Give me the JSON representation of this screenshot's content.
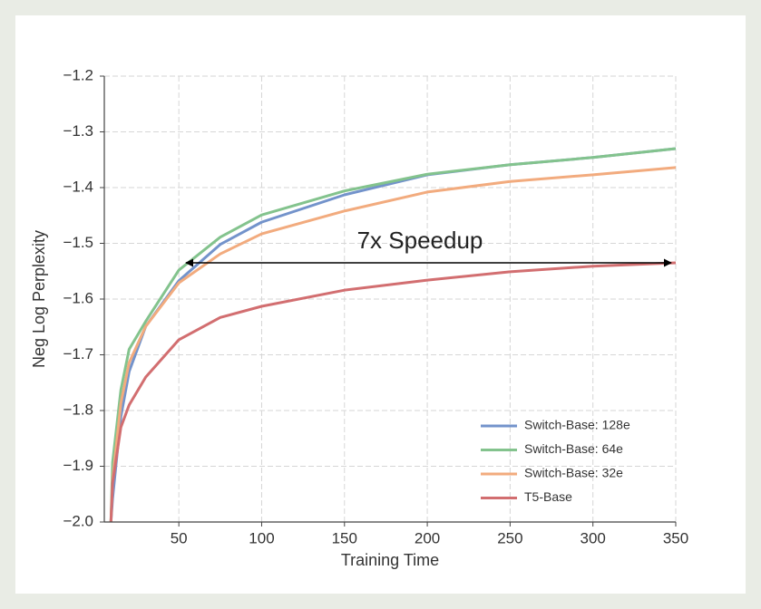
{
  "chart_data": {
    "type": "line",
    "xlabel": "Training Time",
    "ylabel": "Neg Log Perplexity",
    "annotation": "7x Speedup",
    "x": [
      9,
      10,
      15,
      20,
      30,
      50,
      75,
      100,
      150,
      200,
      250,
      300,
      350
    ],
    "series": [
      {
        "name": "Switch-Base: 128e",
        "color": "#7393cb",
        "values": [
          -2.0,
          -1.958,
          -1.811,
          -1.73,
          -1.649,
          -1.567,
          -1.502,
          -1.462,
          -1.413,
          -1.377,
          -1.359,
          -1.346,
          -1.33
        ]
      },
      {
        "name": "Switch-Base: 64e",
        "color": "#83c38d",
        "values": [
          -2.0,
          -1.893,
          -1.763,
          -1.69,
          -1.64,
          -1.548,
          -1.489,
          -1.449,
          -1.406,
          -1.376,
          -1.359,
          -1.346,
          -1.33
        ]
      },
      {
        "name": "Switch-Base: 32e",
        "color": "#f2ab7e",
        "values": [
          -2.0,
          -1.925,
          -1.787,
          -1.714,
          -1.649,
          -1.571,
          -1.519,
          -1.483,
          -1.442,
          -1.408,
          -1.389,
          -1.377,
          -1.364
        ]
      },
      {
        "name": "T5-Base",
        "color": "#d26e70",
        "values": [
          -2.0,
          -1.93,
          -1.83,
          -1.79,
          -1.74,
          -1.673,
          -1.633,
          -1.613,
          -1.584,
          -1.566,
          -1.551,
          -1.541,
          -1.535
        ]
      }
    ],
    "xlim": [
      5,
      350
    ],
    "ylim": [
      -2.0,
      -1.2
    ],
    "xticks": [
      50,
      100,
      150,
      200,
      250,
      300,
      350
    ],
    "yticks": [
      {
        "value": -2.0,
        "label": "−2.0"
      },
      {
        "value": -1.9,
        "label": "−1.9"
      },
      {
        "value": -1.8,
        "label": "−1.8"
      },
      {
        "value": -1.7,
        "label": "−1.7"
      },
      {
        "value": -1.6,
        "label": "−1.6"
      },
      {
        "value": -1.5,
        "label": "−1.5"
      },
      {
        "value": -1.4,
        "label": "−1.4"
      },
      {
        "value": -1.3,
        "label": "−1.3"
      },
      {
        "value": -1.2,
        "label": "−1.2"
      }
    ],
    "grid": true,
    "legend": "lower right"
  }
}
